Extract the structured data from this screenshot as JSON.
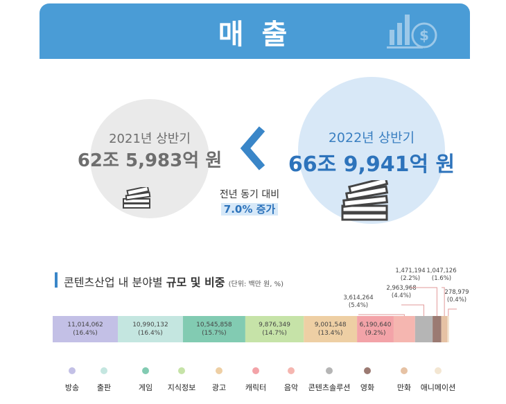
{
  "banner": {
    "title": "매 출"
  },
  "comparison": {
    "left": {
      "period": "2021년 상반기",
      "value": "62조 5,983억 원"
    },
    "right": {
      "period": "2022년 상반기",
      "value": "66조 9,941억 원"
    },
    "change_label": "전년 동기 대비",
    "change_value": "7.0% 증가"
  },
  "section": {
    "title_regular": "콘텐츠산업 내 분야별 ",
    "title_bold": "규모 및 비중",
    "unit": "(단위: 백만 원, %)"
  },
  "chart_data": {
    "type": "bar",
    "orientation": "stacked-horizontal",
    "categories": [
      "방송",
      "출판",
      "게임",
      "지식정보",
      "광고",
      "캐릭터",
      "음악",
      "콘텐츠솔루션",
      "영화",
      "만화",
      "애니메이션"
    ],
    "values": [
      11014062,
      10990132,
      10545858,
      9876349,
      9001548,
      6190640,
      3614264,
      2963968,
      1471194,
      1047126,
      278979
    ],
    "value_labels": [
      "11,014,062",
      "10,990,132",
      "10,545,858",
      "9,876,349",
      "9,001,548",
      "6,190,640",
      "3,614,264",
      "2,963,968",
      "1,471,194",
      "1,047,126",
      "278,979"
    ],
    "percent_labels": [
      "(16.4%)",
      "(16.4%)",
      "(15.7%)",
      "(14.7%)",
      "(13.4%)",
      "(9.2%)",
      "(5.4%)",
      "(4.4%)",
      "(2.2%)",
      "(1.6%)",
      "(0.4%)"
    ],
    "colors": [
      "#c3c0e6",
      "#c4e6e0",
      "#82cbb2",
      "#c6e3a8",
      "#eecfa4",
      "#f3a3a8",
      "#f5b6b0",
      "#b5b5b5",
      "#9b7a72",
      "#e6c2a4",
      "#f3e6d2"
    ],
    "legend_placement": "bottom"
  }
}
